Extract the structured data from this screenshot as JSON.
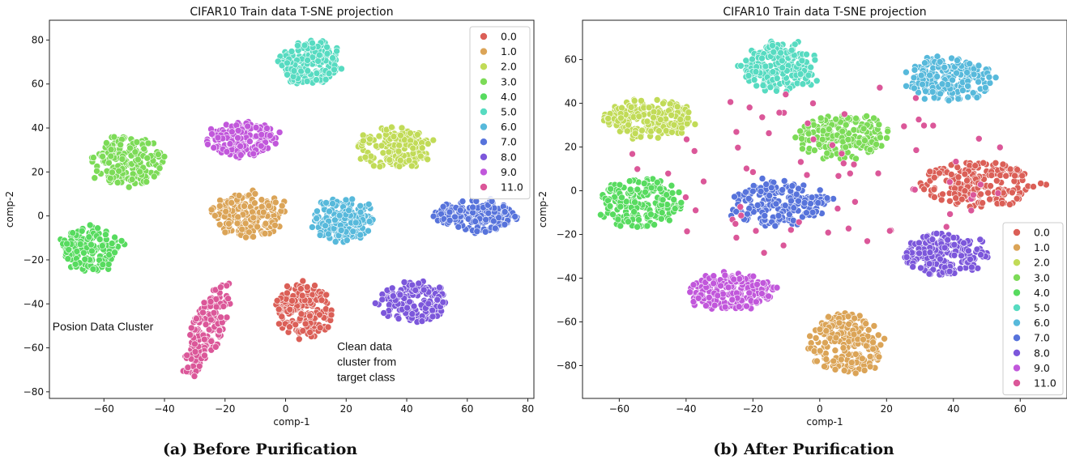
{
  "captions": {
    "a": "(a) Before Purification",
    "b": "(b) After Purification"
  },
  "chart_data": [
    {
      "type": "scatter",
      "title": "CIFAR10 Train data T-SNE projection",
      "xlabel": "comp-1",
      "ylabel": "comp-2",
      "xlim": [
        -78,
        82
      ],
      "ylim": [
        -83,
        89
      ],
      "xticks": [
        -60,
        -40,
        -20,
        0,
        20,
        40,
        60,
        80
      ],
      "yticks": [
        -80,
        -60,
        -40,
        -20,
        0,
        20,
        40,
        60,
        80
      ],
      "legend_position": "top-right",
      "annotations": [
        {
          "text": "Posion Data Cluster",
          "x": -77,
          "y": -52
        },
        {
          "text": "Clean data",
          "x": 17,
          "y": -61
        },
        {
          "text": "cluster from",
          "x": 17,
          "y": -68
        },
        {
          "text": "target class",
          "x": 17,
          "y": -75
        }
      ],
      "series": [
        {
          "name": "0.0",
          "color": "#db5f57",
          "clusters": [
            {
              "cx": 6,
              "cy": -43,
              "rx": 9,
              "ry": 12,
              "n": 180
            }
          ]
        },
        {
          "name": "1.0",
          "color": "#dba457",
          "clusters": [
            {
              "cx": -12,
              "cy": 0,
              "rx": 12,
              "ry": 10,
              "n": 180
            }
          ]
        },
        {
          "name": "2.0",
          "color": "#c1db57",
          "clusters": [
            {
              "cx": 36,
              "cy": 31,
              "rx": 12,
              "ry": 9,
              "n": 170
            }
          ]
        },
        {
          "name": "3.0",
          "color": "#7cdb57",
          "clusters": [
            {
              "cx": -52,
              "cy": 25,
              "rx": 12,
              "ry": 11,
              "n": 180
            }
          ]
        },
        {
          "name": "4.0",
          "color": "#57db5f",
          "clusters": [
            {
              "cx": -64,
              "cy": -15,
              "rx": 10,
              "ry": 10,
              "n": 160
            }
          ]
        },
        {
          "name": "5.0",
          "color": "#57dbc1",
          "clusters": [
            {
              "cx": 8,
              "cy": 70,
              "rx": 10,
              "ry": 10,
              "n": 180
            }
          ]
        },
        {
          "name": "6.0",
          "color": "#57b9db",
          "clusters": [
            {
              "cx": 19,
              "cy": -2,
              "rx": 10,
              "ry": 10,
              "n": 180
            }
          ]
        },
        {
          "name": "7.0",
          "color": "#5773db",
          "clusters": [
            {
              "cx": 63,
              "cy": 0,
              "rx": 13,
              "ry": 7,
              "n": 180
            }
          ]
        },
        {
          "name": "8.0",
          "color": "#7c57db",
          "clusters": [
            {
              "cx": 42,
              "cy": -39,
              "rx": 11,
              "ry": 9,
              "n": 170
            }
          ]
        },
        {
          "name": "9.0",
          "color": "#c157db",
          "clusters": [
            {
              "cx": -15,
              "cy": 35,
              "rx": 12,
              "ry": 8,
              "n": 170
            }
          ]
        },
        {
          "name": "11.0",
          "color": "#db5799",
          "clusters": [
            {
              "cx": -26,
              "cy": -52,
              "rx": 5,
              "ry": 21,
              "angle": -15,
              "n": 170
            }
          ]
        }
      ]
    },
    {
      "type": "scatter",
      "title": "CIFAR10 Train data T-SNE projection",
      "xlabel": "comp-1",
      "ylabel": "comp-2",
      "xlim": [
        -71,
        74
      ],
      "ylim": [
        -95,
        78
      ],
      "xticks": [
        -60,
        -40,
        -20,
        0,
        20,
        40,
        60
      ],
      "yticks": [
        -80,
        -60,
        -40,
        -20,
        0,
        20,
        40,
        60
      ],
      "legend_position": "lower-right",
      "series": [
        {
          "name": "0.0",
          "color": "#db5f57",
          "clusters": [
            {
              "cx": 47,
              "cy": 3,
              "rx": 17,
              "ry": 10,
              "n": 220
            }
          ]
        },
        {
          "name": "1.0",
          "color": "#dba457",
          "clusters": [
            {
              "cx": 8,
              "cy": -70,
              "rx": 11,
              "ry": 14,
              "n": 200
            }
          ]
        },
        {
          "name": "2.0",
          "color": "#c1db57",
          "clusters": [
            {
              "cx": -51,
              "cy": 33,
              "rx": 13,
              "ry": 9,
              "n": 200
            }
          ]
        },
        {
          "name": "3.0",
          "color": "#7cdb57",
          "clusters": [
            {
              "cx": 7,
              "cy": 25,
              "rx": 13,
              "ry": 10,
              "n": 200
            }
          ]
        },
        {
          "name": "4.0",
          "color": "#57db5f",
          "clusters": [
            {
              "cx": -54,
              "cy": -6,
              "rx": 12,
              "ry": 11,
              "n": 200
            }
          ]
        },
        {
          "name": "5.0",
          "color": "#57dbc1",
          "clusters": [
            {
              "cx": -12,
              "cy": 57,
              "rx": 11,
              "ry": 11,
              "n": 200
            }
          ]
        },
        {
          "name": "6.0",
          "color": "#57b9db",
          "clusters": [
            {
              "cx": 39,
              "cy": 51,
              "rx": 13,
              "ry": 10,
              "n": 200
            }
          ]
        },
        {
          "name": "7.0",
          "color": "#5773db",
          "clusters": [
            {
              "cx": -12,
              "cy": -6,
              "rx": 14,
              "ry": 10,
              "n": 200
            }
          ]
        },
        {
          "name": "8.0",
          "color": "#7c57db",
          "clusters": [
            {
              "cx": 37,
              "cy": -29,
              "rx": 12,
              "ry": 10,
              "n": 200
            }
          ]
        },
        {
          "name": "9.0",
          "color": "#c157db",
          "clusters": [
            {
              "cx": -27,
              "cy": -46,
              "rx": 13,
              "ry": 8,
              "n": 190
            }
          ]
        },
        {
          "name": "11.0",
          "color": "#db5799",
          "clusters": [
            {
              "cx": 0,
              "cy": 10,
              "rx": 60,
              "ry": 40,
              "n": 70
            }
          ]
        }
      ]
    }
  ]
}
